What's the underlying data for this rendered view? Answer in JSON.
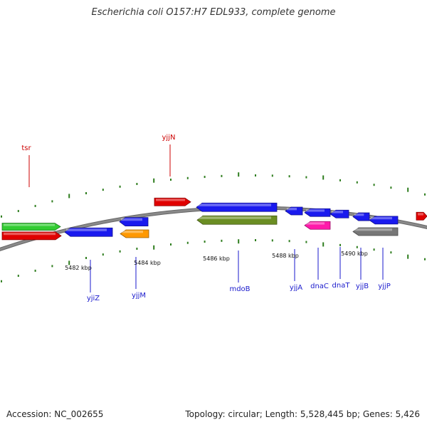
{
  "title": "Escherichia coli O157:H7 EDL933, complete genome",
  "footer": {
    "accession": "Accession: NC_002655",
    "summary": "Topology: circular; Length: 5,528,445 bp; Genes: 5,426"
  },
  "colors": {
    "backbone": "#8a8a8a",
    "tick": "#2e7d1e",
    "label_forward": "#cc0000",
    "label_reverse": "#1a1acc"
  },
  "scale_labels": [
    "5482 kbp",
    "5484 kbp",
    "5486 kbp",
    "5488 kbp",
    "5490 kbp"
  ],
  "genes": [
    {
      "name": "tsr",
      "strand": "+",
      "color": "#e00000"
    },
    {
      "name": "",
      "strand": "+",
      "color": "#33cc33"
    },
    {
      "name": "yjjN",
      "strand": "+",
      "color": "#e00000"
    },
    {
      "name": "",
      "strand": "+",
      "color": "#e00000"
    },
    {
      "name": "yjiZ",
      "strand": "-",
      "color": "#1a1aee"
    },
    {
      "name": "yjjM",
      "strand": "-",
      "color": "#1a1aee"
    },
    {
      "name": "",
      "strand": "-",
      "color": "#ff9900"
    },
    {
      "name": "mdoB",
      "strand": "-",
      "color": "#1a1aee"
    },
    {
      "name": "",
      "strand": "-",
      "color": "#6b8e23"
    },
    {
      "name": "yjjA",
      "strand": "-",
      "color": "#1a1aee"
    },
    {
      "name": "dnaC",
      "strand": "-",
      "color": "#1a1aee"
    },
    {
      "name": "",
      "strand": "-",
      "color": "#ff1aaa"
    },
    {
      "name": "dnaT",
      "strand": "-",
      "color": "#1a1aee"
    },
    {
      "name": "yjjB",
      "strand": "-",
      "color": "#1a1aee"
    },
    {
      "name": "yjjP",
      "strand": "-",
      "color": "#1a1aee"
    },
    {
      "name": "",
      "strand": "-",
      "color": "#777777"
    }
  ]
}
